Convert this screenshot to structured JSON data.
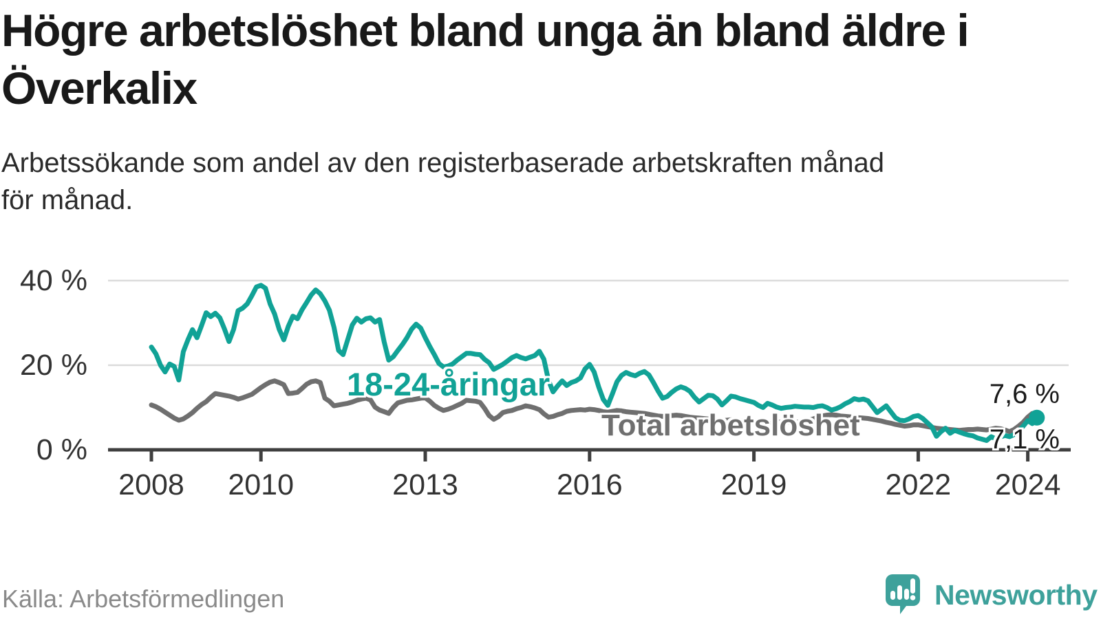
{
  "header": {
    "title_lines": [
      "Högre arbetslöshet bland unga än bland äldre i",
      "Överkalix"
    ],
    "subtitle_lines": [
      "Arbetssökande som andel av den registerbaserade arbetskraften månad",
      "för månad."
    ]
  },
  "chart_data": {
    "type": "line",
    "unit": "%",
    "x_start": "2008-01",
    "x_end": "2024-03",
    "x_interval": "month",
    "grid": "horizontal",
    "ylim": [
      0,
      43
    ],
    "x_tick_years": [
      2008,
      2010,
      2013,
      2016,
      2019,
      2022,
      2024
    ],
    "y_ticks": [
      {
        "value": 0,
        "label": "0 %"
      },
      {
        "value": 20,
        "label": "20 %"
      },
      {
        "value": 40,
        "label": "40 %"
      }
    ],
    "colors": {
      "grid": "#dbdbdb",
      "axis": "#3f3f3f",
      "tick_text": "#333333"
    },
    "series": [
      {
        "name": "18-24-åringar",
        "color": "#11a296",
        "end_label": "7,6 %",
        "end_value": 7.6,
        "values": [
          24.3,
          22.7,
          20.0,
          18.4,
          20.3,
          19.7,
          16.5,
          23.2,
          26.0,
          28.4,
          26.5,
          29.4,
          32.4,
          31.5,
          32.3,
          31.2,
          28.6,
          25.6,
          28.4,
          32.9,
          33.5,
          34.5,
          36.4,
          38.5,
          38.9,
          38.2,
          34.5,
          32.1,
          28.5,
          26.0,
          29.2,
          31.6,
          31.0,
          33.1,
          34.8,
          36.6,
          37.8,
          36.9,
          35.2,
          33.0,
          29.0,
          23.5,
          22.5,
          26.0,
          29.5,
          31.1,
          30.2,
          31.0,
          31.2,
          30.2,
          30.8,
          25.5,
          21.2,
          22.0,
          23.5,
          24.9,
          26.5,
          28.5,
          29.7,
          28.8,
          26.5,
          24.4,
          22.5,
          20.4,
          19.6,
          19.8,
          20.3,
          21.2,
          22.0,
          22.8,
          22.8,
          22.6,
          22.5,
          21.4,
          20.6,
          19.0,
          19.6,
          20.2,
          21.0,
          21.8,
          22.3,
          21.8,
          21.5,
          21.9,
          22.3,
          23.3,
          21.4,
          16.4,
          13.7,
          15.1,
          16.3,
          15.2,
          15.9,
          16.3,
          17.0,
          19.1,
          20.2,
          18.4,
          14.9,
          11.9,
          10.5,
          13.2,
          16.1,
          17.6,
          18.3,
          17.8,
          17.5,
          18.1,
          18.5,
          17.7,
          15.9,
          13.9,
          12.2,
          12.6,
          13.6,
          14.4,
          14.9,
          14.5,
          13.8,
          12.4,
          11.3,
          12.1,
          12.9,
          12.8,
          12.0,
          10.6,
          11.6,
          12.7,
          12.5,
          12.1,
          11.8,
          11.5,
          11.2,
          10.5,
          10.0,
          11.0,
          10.6,
          10.1,
          9.8,
          10.0,
          10.1,
          10.3,
          10.2,
          10.1,
          10.1,
          10.0,
          10.3,
          10.4,
          10.0,
          9.4,
          9.7,
          10.2,
          10.9,
          11.4,
          12.1,
          11.8,
          12.0,
          11.6,
          10.2,
          8.8,
          9.6,
          10.4,
          9.0,
          7.6,
          7.0,
          6.9,
          7.3,
          7.9,
          8.1,
          7.4,
          6.4,
          5.4,
          3.2,
          4.3,
          5.1,
          3.9,
          4.6,
          4.2,
          3.8,
          3.5,
          3.3,
          2.8,
          2.5,
          2.2,
          3.1,
          2.6,
          3.0,
          3.4,
          3.1,
          3.6,
          4.4,
          5.6,
          6.9,
          6.2,
          7.6
        ]
      },
      {
        "name": "Total arbetslöshet",
        "color": "#6f6f6f",
        "end_label": "7,1 %",
        "end_value": 7.1,
        "values": [
          10.6,
          10.2,
          9.6,
          8.9,
          8.2,
          7.5,
          7.0,
          7.3,
          8.0,
          8.8,
          9.8,
          10.7,
          11.4,
          12.4,
          13.3,
          13.1,
          12.9,
          12.7,
          12.4,
          12.0,
          12.3,
          12.7,
          13.1,
          13.9,
          14.7,
          15.4,
          16.0,
          16.3,
          15.9,
          15.4,
          13.3,
          13.4,
          13.6,
          14.5,
          15.5,
          16.1,
          16.3,
          15.9,
          12.2,
          11.5,
          10.4,
          10.6,
          10.8,
          11.0,
          11.3,
          11.7,
          12.0,
          12.2,
          11.8,
          10.1,
          9.4,
          9.0,
          8.6,
          10.0,
          11.1,
          11.4,
          11.7,
          11.8,
          12.0,
          12.2,
          12.3,
          11.5,
          10.5,
          9.8,
          9.3,
          9.6,
          10.0,
          10.5,
          11.0,
          11.7,
          11.6,
          11.5,
          11.2,
          9.8,
          8.1,
          7.2,
          7.8,
          8.8,
          9.1,
          9.3,
          9.7,
          10.0,
          10.4,
          10.2,
          9.9,
          9.5,
          8.5,
          7.7,
          7.9,
          8.3,
          8.6,
          9.1,
          9.3,
          9.4,
          9.5,
          9.4,
          9.6,
          9.5,
          9.3,
          9.0,
          8.9,
          9.1,
          9.3,
          9.2,
          9.0,
          8.9,
          8.8,
          8.7,
          8.6,
          8.4,
          8.2,
          8.0,
          7.9,
          8.0,
          8.1,
          8.2,
          8.1,
          7.9,
          7.7,
          7.6,
          7.5,
          7.4,
          7.3,
          7.2,
          7.0,
          6.9,
          7.0,
          7.1,
          7.0,
          6.9,
          6.8,
          6.8,
          6.9,
          6.8,
          6.6,
          6.5,
          6.4,
          6.5,
          6.6,
          6.5,
          6.4,
          6.5,
          6.6,
          6.8,
          7.0,
          7.3,
          7.7,
          8.0,
          8.2,
          8.3,
          8.2,
          8.0,
          7.9,
          7.8,
          7.7,
          7.6,
          7.5,
          7.4,
          7.2,
          7.0,
          6.8,
          6.5,
          6.3,
          6.0,
          5.8,
          5.6,
          5.7,
          5.9,
          5.9,
          5.7,
          5.5,
          5.3,
          5.1,
          5.0,
          4.9,
          4.8,
          4.7,
          4.6,
          4.7,
          4.8,
          4.8,
          4.9,
          4.8,
          4.7,
          4.9,
          5.1,
          5.0,
          4.7,
          4.3,
          4.8,
          5.6,
          6.5,
          7.7,
          8.6,
          7.1
        ]
      }
    ]
  },
  "footer": {
    "source": "Källa: Arbetsförmedlingen",
    "brand": "Newsworthy",
    "brand_color": "#3ea19b"
  }
}
